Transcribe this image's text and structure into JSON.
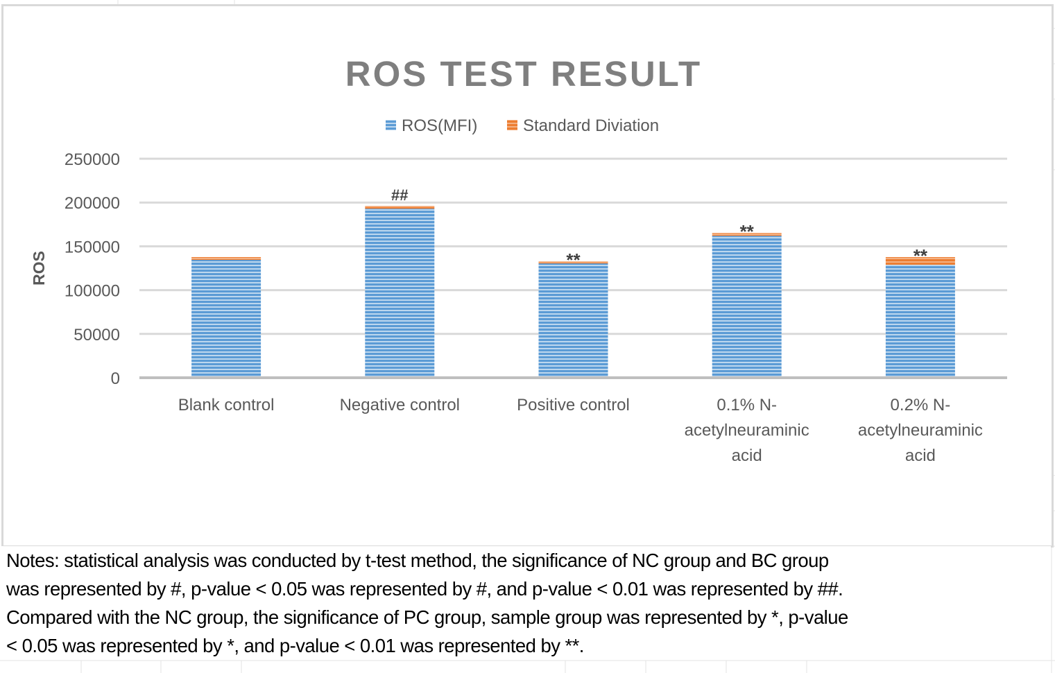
{
  "chart_data": {
    "type": "bar",
    "stacked": true,
    "title": "ROS TEST RESULT",
    "ylabel": "ROS",
    "xlabel": "",
    "ylim": [
      0,
      250000
    ],
    "yticks": [
      0,
      50000,
      100000,
      150000,
      200000,
      250000
    ],
    "ytick_labels": [
      "0",
      "50000",
      "100000",
      "150000",
      "200000",
      "250000"
    ],
    "grid": true,
    "legend_position": "top",
    "categories": [
      [
        "Blank control"
      ],
      [
        "Negative control"
      ],
      [
        "Positive control"
      ],
      [
        "0.1% N-",
        "acetylneuraminic",
        "acid"
      ],
      [
        "0.2% N-",
        "acetylneuraminic",
        "acid"
      ]
    ],
    "series": [
      {
        "name": "ROS(MFI)",
        "color": "#5b9bd5",
        "values": [
          134500,
          193000,
          130500,
          162000,
          129000
        ]
      },
      {
        "name": "Standard Diviation",
        "color": "#ed7d31",
        "values": [
          3200,
          3200,
          2400,
          3200,
          8700
        ]
      }
    ],
    "annotations": [
      "",
      "##",
      "**",
      "**",
      "**"
    ]
  },
  "notes": {
    "lines": [
      "Notes: statistical analysis was conducted by t-test method, the significance of NC group and BC group",
      "was represented by #, p-value < 0.05 was represented by #, and p-value < 0.01 was represented by ##.",
      "Compared with the NC group, the significance of PC group, sample group was represented by *, p-value",
      "< 0.05 was represented by *, and p-value < 0.01 was represented by **."
    ]
  }
}
